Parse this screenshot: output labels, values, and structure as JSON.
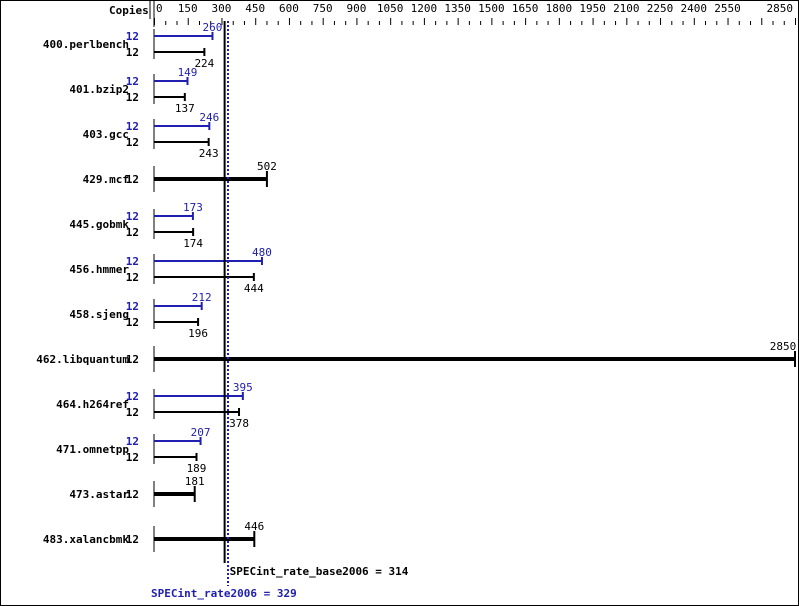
{
  "chart_data": {
    "type": "bar",
    "orientation": "horizontal",
    "column_header": "Copies",
    "xlim": [
      0,
      2850
    ],
    "x_ticks": [
      0,
      150,
      300,
      450,
      600,
      750,
      900,
      1050,
      1200,
      1350,
      1500,
      1650,
      1800,
      1950,
      2100,
      2250,
      2400,
      2550,
      2850
    ],
    "colors": {
      "peak": "#2020b0",
      "base": "#000000"
    },
    "benchmarks": [
      {
        "name": "400.perlbench",
        "peak_copies": "12",
        "peak": 260,
        "base_copies": "12",
        "base": 224
      },
      {
        "name": "401.bzip2",
        "peak_copies": "12",
        "peak": 149,
        "base_copies": "12",
        "base": 137
      },
      {
        "name": "403.gcc",
        "peak_copies": "12",
        "peak": 246,
        "base_copies": "12",
        "base": 243
      },
      {
        "name": "429.mcf",
        "base_copies": "12",
        "base": 502
      },
      {
        "name": "445.gobmk",
        "peak_copies": "12",
        "peak": 173,
        "base_copies": "12",
        "base": 174
      },
      {
        "name": "456.hmmer",
        "peak_copies": "12",
        "peak": 480,
        "base_copies": "12",
        "base": 444
      },
      {
        "name": "458.sjeng",
        "peak_copies": "12",
        "peak": 212,
        "base_copies": "12",
        "base": 196
      },
      {
        "name": "462.libquantum",
        "base_copies": "12",
        "base": 2850
      },
      {
        "name": "464.h264ref",
        "peak_copies": "12",
        "peak": 395,
        "base_copies": "12",
        "base": 378
      },
      {
        "name": "471.omnetpp",
        "peak_copies": "12",
        "peak": 207,
        "base_copies": "12",
        "base": 189
      },
      {
        "name": "473.astar",
        "base_copies": "12",
        "base": 181
      },
      {
        "name": "483.xalancbmk",
        "base_copies": "12",
        "base": 446
      }
    ],
    "reference_lines": {
      "base": {
        "label": "SPECint_rate_base2006 = 314",
        "value": 314
      },
      "peak": {
        "label": "SPECint_rate2006 = 329",
        "value": 329
      }
    }
  }
}
